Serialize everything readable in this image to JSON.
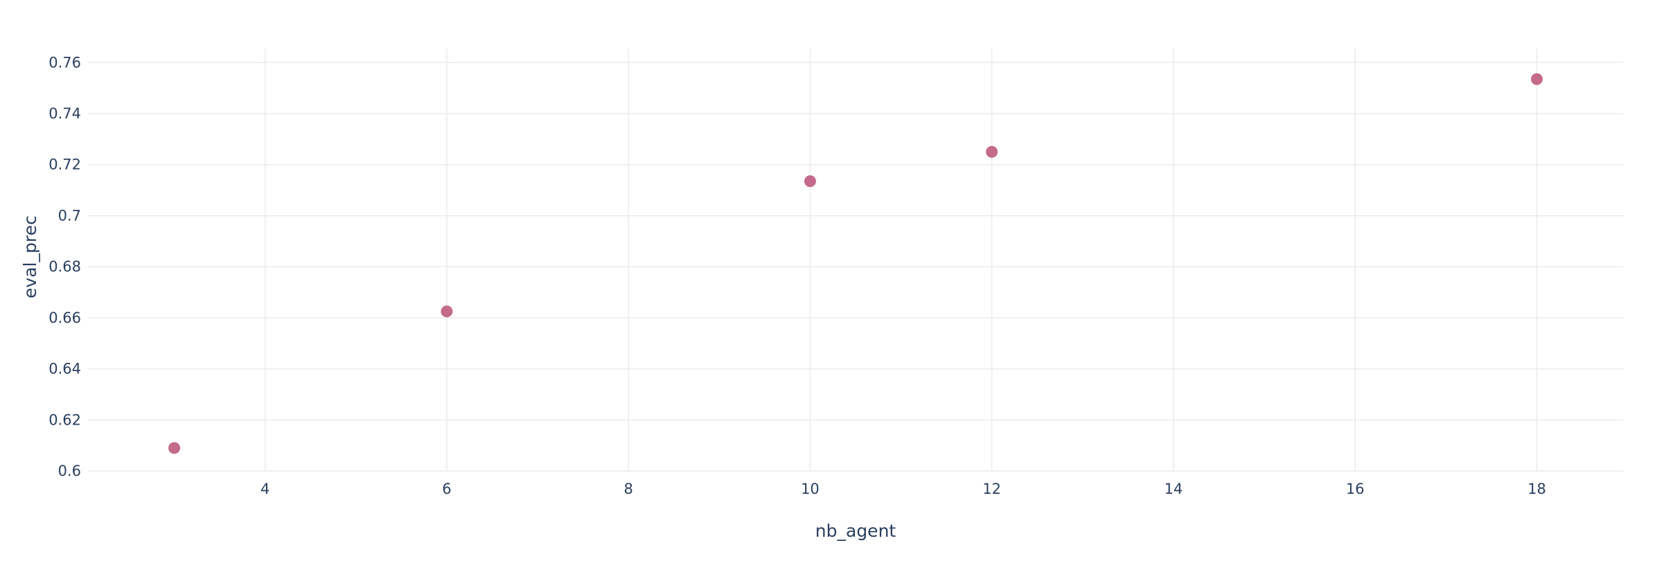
{
  "chart_data": {
    "type": "scatter",
    "title": "",
    "xlabel": "nb_agent",
    "ylabel": "eval_prec",
    "x": [
      3,
      6,
      10,
      12,
      18
    ],
    "y": [
      0.609,
      0.6625,
      0.7135,
      0.725,
      0.7535
    ],
    "xlim": [
      2.05,
      18.95
    ],
    "ylim": [
      0.6,
      0.7655
    ],
    "x_ticks": [
      4,
      6,
      8,
      10,
      12,
      14,
      16,
      18
    ],
    "x_tick_labels": [
      "4",
      "6",
      "8",
      "10",
      "12",
      "14",
      "16",
      "18"
    ],
    "y_ticks": [
      0.6,
      0.62,
      0.64,
      0.66,
      0.68,
      0.7,
      0.72,
      0.74,
      0.76
    ],
    "y_tick_labels": [
      "0.6",
      "0.62",
      "0.64",
      "0.66",
      "0.68",
      "0.7",
      "0.72",
      "0.74",
      "0.76"
    ],
    "grid": true,
    "marker_color": "#c46a8a",
    "grid_color": "#ebebeb",
    "text_color": "#2a3f5f"
  }
}
